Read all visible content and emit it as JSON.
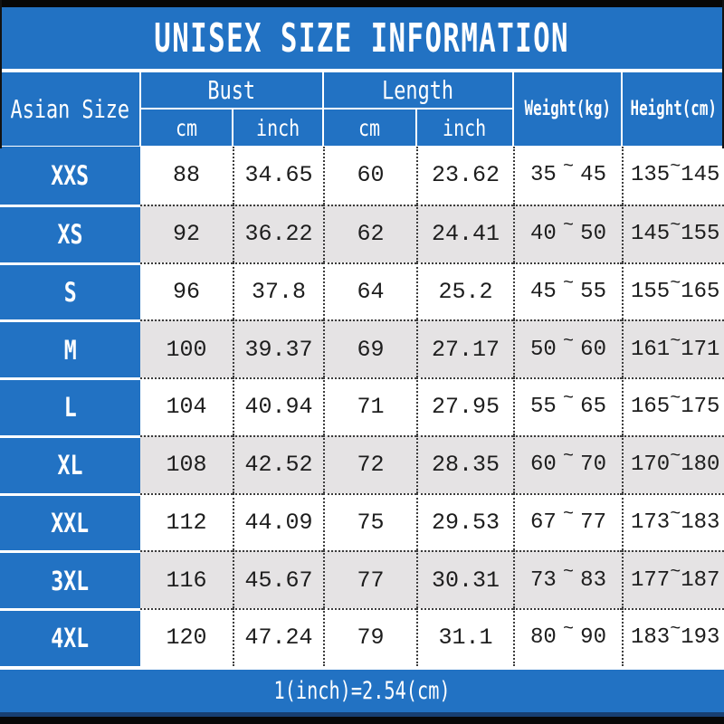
{
  "title": "UNISEX SIZE INFORMATION",
  "footer": {
    "note": "1(inch)=2.54(cm)"
  },
  "colors": {
    "blue": "#2272c3",
    "row_shade": "#e5e3e4",
    "bar_black": "#070707",
    "line_dark_blue": "#173f72",
    "dot_border": "#3c3c3c",
    "text": "#1d1d1d"
  },
  "table": {
    "headers": {
      "size": "Asian Size",
      "bust": "Bust",
      "length": "Length",
      "weight": "Weight(kg)",
      "height": "Height(cm)",
      "unit_cm": "cm",
      "unit_inch": "inch"
    },
    "range_separator": "~",
    "rows": [
      {
        "size": "XXS",
        "bust_cm": "88",
        "bust_inch": "34.65",
        "length_cm": "60",
        "length_inch": "23.62",
        "weight_min": "35",
        "weight_max": "45",
        "height_min": "135",
        "height_max": "145"
      },
      {
        "size": "XS",
        "bust_cm": "92",
        "bust_inch": "36.22",
        "length_cm": "62",
        "length_inch": "24.41",
        "weight_min": "40",
        "weight_max": "50",
        "height_min": "145",
        "height_max": "155"
      },
      {
        "size": "S",
        "bust_cm": "96",
        "bust_inch": "37.8",
        "length_cm": "64",
        "length_inch": "25.2",
        "weight_min": "45",
        "weight_max": "55",
        "height_min": "155",
        "height_max": "165"
      },
      {
        "size": "M",
        "bust_cm": "100",
        "bust_inch": "39.37",
        "length_cm": "69",
        "length_inch": "27.17",
        "weight_min": "50",
        "weight_max": "60",
        "height_min": "161",
        "height_max": "171"
      },
      {
        "size": "L",
        "bust_cm": "104",
        "bust_inch": "40.94",
        "length_cm": "71",
        "length_inch": "27.95",
        "weight_min": "55",
        "weight_max": "65",
        "height_min": "165",
        "height_max": "175"
      },
      {
        "size": "XL",
        "bust_cm": "108",
        "bust_inch": "42.52",
        "length_cm": "72",
        "length_inch": "28.35",
        "weight_min": "60",
        "weight_max": "70",
        "height_min": "170",
        "height_max": "180"
      },
      {
        "size": "XXL",
        "bust_cm": "112",
        "bust_inch": "44.09",
        "length_cm": "75",
        "length_inch": "29.53",
        "weight_min": "67",
        "weight_max": "77",
        "height_min": "173",
        "height_max": "183"
      },
      {
        "size": "3XL",
        "bust_cm": "116",
        "bust_inch": "45.67",
        "length_cm": "77",
        "length_inch": "30.31",
        "weight_min": "73",
        "weight_max": "83",
        "height_min": "177",
        "height_max": "187"
      },
      {
        "size": "4XL",
        "bust_cm": "120",
        "bust_inch": "47.24",
        "length_cm": "79",
        "length_inch": "31.1",
        "weight_min": "80",
        "weight_max": "90",
        "height_min": "183",
        "height_max": "193"
      }
    ]
  }
}
